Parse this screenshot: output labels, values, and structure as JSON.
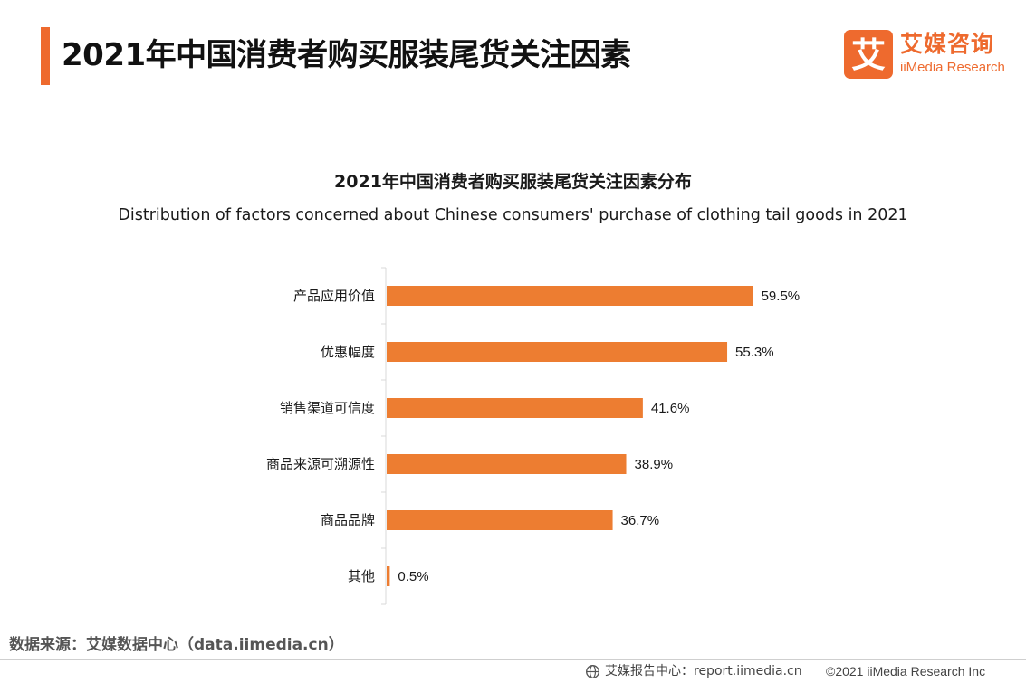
{
  "header": {
    "title": "2021年中国消费者购买服装尾货关注因素",
    "accent_color": "#ee6a2e"
  },
  "logo": {
    "mark_char": "艾",
    "name_cn": "艾媒咨询",
    "name_en": "iiMedia Research",
    "color": "#ee6a2e"
  },
  "chart_data": {
    "type": "bar",
    "orientation": "horizontal",
    "title": "2021年中国消费者购买服装尾货关注因素分布",
    "subtitle": "Distribution of factors concerned about Chinese consumers' purchase of clothing tail goods in 2021",
    "categories": [
      "产品应用价值",
      "优惠幅度",
      "销售渠道可信度",
      "商品来源可溯源性",
      "商品品牌",
      "其他"
    ],
    "values": [
      59.5,
      55.3,
      41.6,
      38.9,
      36.7,
      0.5
    ],
    "value_labels": [
      "59.5%",
      "55.3%",
      "41.6%",
      "38.9%",
      "36.7%",
      "0.5%"
    ],
    "unit": "%",
    "bar_color": "#ed7d31",
    "xlabel": "",
    "ylabel": "",
    "xlim": [
      0,
      100
    ],
    "grid": false,
    "legend": "none"
  },
  "footer": {
    "source": "数据来源：艾媒数据中心（data.iimedia.cn）",
    "report_center": "艾媒报告中心：report.iimedia.cn",
    "copyright": "©2021  iiMedia Research  Inc"
  }
}
